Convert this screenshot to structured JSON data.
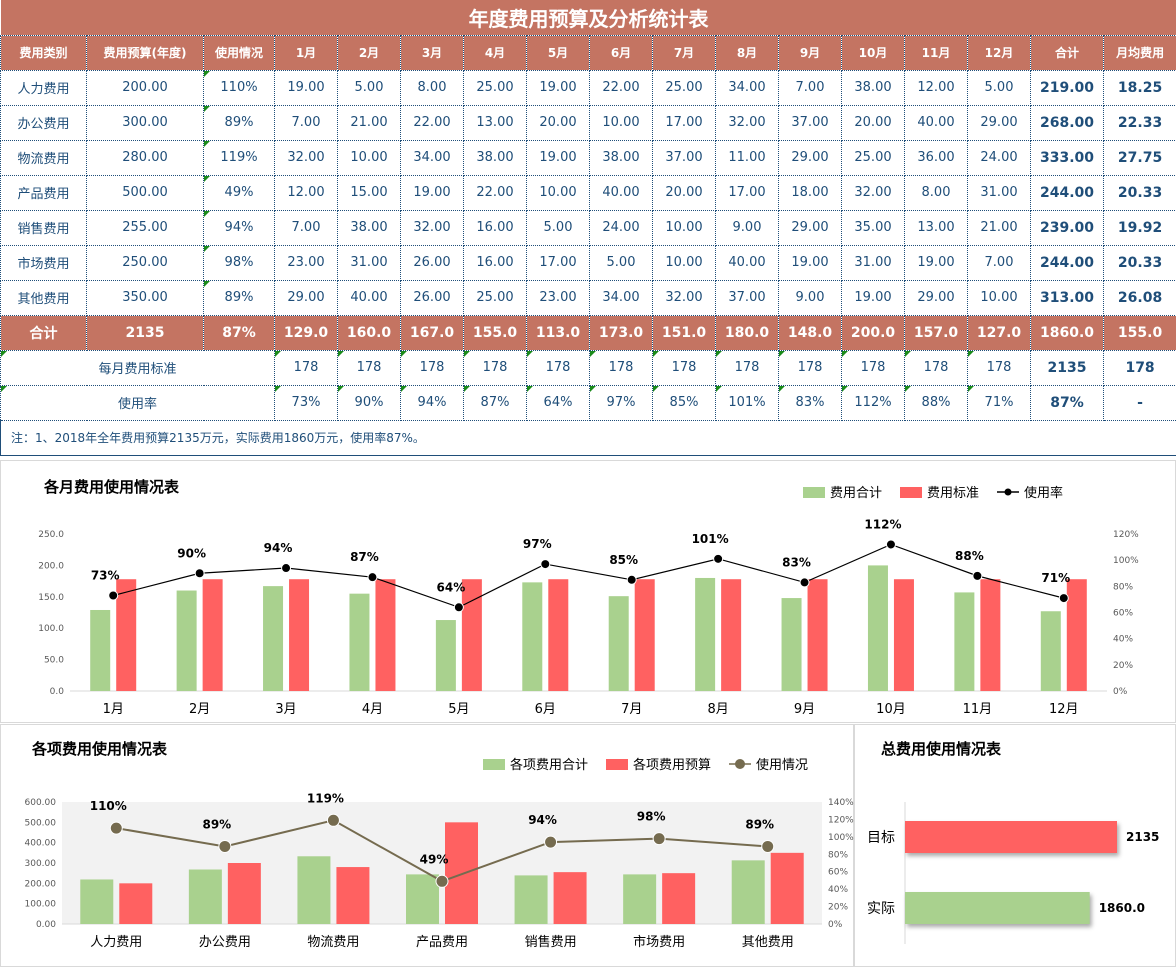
{
  "title": "年度费用预算及分析统计表",
  "headers": [
    "费用类别",
    "费用预算(年度)",
    "使用情况",
    "1月",
    "2月",
    "3月",
    "4月",
    "5月",
    "6月",
    "7月",
    "8月",
    "9月",
    "10月",
    "11月",
    "12月",
    "合计",
    "月均费用"
  ],
  "rows": [
    [
      "人力费用",
      "200.00",
      "110%",
      "19.00",
      "5.00",
      "8.00",
      "25.00",
      "19.00",
      "22.00",
      "25.00",
      "34.00",
      "7.00",
      "38.00",
      "12.00",
      "5.00",
      "219.00",
      "18.25"
    ],
    [
      "办公费用",
      "300.00",
      "89%",
      "7.00",
      "21.00",
      "22.00",
      "13.00",
      "20.00",
      "10.00",
      "17.00",
      "32.00",
      "37.00",
      "20.00",
      "40.00",
      "29.00",
      "268.00",
      "22.33"
    ],
    [
      "物流费用",
      "280.00",
      "119%",
      "32.00",
      "10.00",
      "34.00",
      "38.00",
      "19.00",
      "38.00",
      "37.00",
      "11.00",
      "29.00",
      "25.00",
      "36.00",
      "24.00",
      "333.00",
      "27.75"
    ],
    [
      "产品费用",
      "500.00",
      "49%",
      "12.00",
      "15.00",
      "19.00",
      "22.00",
      "10.00",
      "40.00",
      "20.00",
      "17.00",
      "18.00",
      "32.00",
      "8.00",
      "31.00",
      "244.00",
      "20.33"
    ],
    [
      "销售费用",
      "255.00",
      "94%",
      "7.00",
      "38.00",
      "32.00",
      "16.00",
      "5.00",
      "24.00",
      "10.00",
      "9.00",
      "29.00",
      "35.00",
      "13.00",
      "21.00",
      "239.00",
      "19.92"
    ],
    [
      "市场费用",
      "250.00",
      "98%",
      "23.00",
      "31.00",
      "26.00",
      "16.00",
      "17.00",
      "5.00",
      "10.00",
      "40.00",
      "19.00",
      "31.00",
      "19.00",
      "7.00",
      "244.00",
      "20.33"
    ],
    [
      "其他费用",
      "350.00",
      "89%",
      "29.00",
      "40.00",
      "26.00",
      "25.00",
      "23.00",
      "34.00",
      "32.00",
      "37.00",
      "9.00",
      "19.00",
      "29.00",
      "10.00",
      "313.00",
      "26.08"
    ]
  ],
  "total_row": [
    "合计",
    "2135",
    "87%",
    "129.0",
    "160.0",
    "167.0",
    "155.0",
    "113.0",
    "173.0",
    "151.0",
    "180.0",
    "148.0",
    "200.0",
    "157.0",
    "127.0",
    "1860.0",
    "155.0"
  ],
  "standard_row": {
    "label": "每月费用标准",
    "values": [
      "178",
      "178",
      "178",
      "178",
      "178",
      "178",
      "178",
      "178",
      "178",
      "178",
      "178",
      "178"
    ],
    "total": "2135",
    "avg": "178"
  },
  "rate_row": {
    "label": "使用率",
    "values": [
      "73%",
      "90%",
      "94%",
      "87%",
      "64%",
      "97%",
      "85%",
      "101%",
      "83%",
      "112%",
      "88%",
      "71%"
    ],
    "total": "87%",
    "avg": "-"
  },
  "note": "注：1、2018年全年费用预算2135万元，实际费用1860万元，使用率87%。",
  "colors": {
    "header": "#c47462",
    "green": "#a9d18e",
    "red": "#ff6161",
    "line": "#000000",
    "line2": "#756b4f"
  },
  "chart_data": [
    {
      "type": "bar",
      "title": "各月费用使用情况表",
      "categories": [
        "1月",
        "2月",
        "3月",
        "4月",
        "5月",
        "6月",
        "7月",
        "8月",
        "9月",
        "10月",
        "11月",
        "12月"
      ],
      "series": [
        {
          "name": "费用合计",
          "type": "bar",
          "values": [
            129,
            160,
            167,
            155,
            113,
            173,
            151,
            180,
            148,
            200,
            157,
            127
          ]
        },
        {
          "name": "费用标准",
          "type": "bar",
          "values": [
            178,
            178,
            178,
            178,
            178,
            178,
            178,
            178,
            178,
            178,
            178,
            178
          ]
        },
        {
          "name": "使用率",
          "type": "line",
          "axis": "right",
          "values": [
            73,
            90,
            94,
            87,
            64,
            97,
            85,
            101,
            83,
            112,
            88,
            71
          ],
          "labels": [
            "73%",
            "90%",
            "94%",
            "87%",
            "64%",
            "97%",
            "85%",
            "101%",
            "83%",
            "112%",
            "88%",
            "71%"
          ]
        }
      ],
      "ylim": [
        0,
        250
      ],
      "yticks": [
        "0.0",
        "50.0",
        "100.0",
        "150.0",
        "200.0",
        "250.0"
      ],
      "y2lim": [
        0,
        120
      ],
      "y2ticks": [
        "0%",
        "20%",
        "40%",
        "60%",
        "80%",
        "100%",
        "120%"
      ],
      "legend": "top-right"
    },
    {
      "type": "bar",
      "title": "各项费用使用情况表",
      "categories": [
        "人力费用",
        "办公费用",
        "物流费用",
        "产品费用",
        "销售费用",
        "市场费用",
        "其他费用"
      ],
      "series": [
        {
          "name": "各项费用合计",
          "type": "bar",
          "values": [
            219,
            268,
            333,
            244,
            239,
            244,
            313
          ]
        },
        {
          "name": "各项费用预算",
          "type": "bar",
          "values": [
            200,
            300,
            280,
            500,
            255,
            250,
            350
          ]
        },
        {
          "name": "使用情况",
          "type": "line",
          "axis": "right",
          "values": [
            110,
            89,
            119,
            49,
            94,
            98,
            89
          ],
          "labels": [
            "110%",
            "89%",
            "119%",
            "49%",
            "94%",
            "98%",
            "89%"
          ]
        }
      ],
      "ylim": [
        0,
        600
      ],
      "yticks": [
        "0.00",
        "100.00",
        "200.00",
        "300.00",
        "400.00",
        "500.00",
        "600.00"
      ],
      "y2lim": [
        0,
        140
      ],
      "y2ticks": [
        "0%",
        "20%",
        "40%",
        "60%",
        "80%",
        "100%",
        "120%",
        "140%"
      ],
      "legend": "top-right"
    },
    {
      "type": "bar",
      "orientation": "horizontal",
      "title": "总费用使用情况表",
      "categories": [
        "目标",
        "实际"
      ],
      "values": [
        2135,
        1860
      ],
      "labels": [
        "2135",
        "1860.0"
      ]
    }
  ]
}
